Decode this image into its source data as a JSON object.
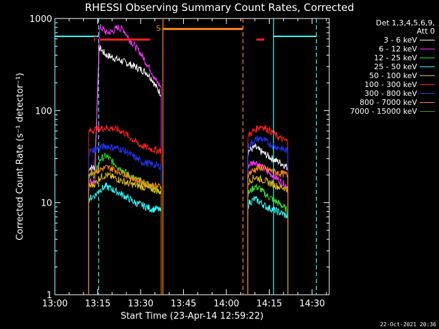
{
  "chart_data": {
    "type": "line",
    "title": "RHESSI Observing Summary Count Rates, Corrected",
    "xlabel": "Start Time (23-Apr-14 12:59:22)",
    "ylabel": "Corrected Count Rate (s⁻¹ detector⁻¹)",
    "y_scale": "log",
    "ylim": [
      1,
      1000
    ],
    "xlim_minutes_after_1300": [
      0,
      96
    ],
    "x_ticks": [
      "13:00",
      "13:15",
      "13:30",
      "13:45",
      "14:00",
      "14:15",
      "14:30"
    ],
    "y_ticks": [
      "1",
      "10",
      "100",
      "1000"
    ],
    "legend_header": [
      "Det 1,3,4,5,6,9,",
      "Att 0"
    ],
    "series": [
      {
        "name": "3 - 6 keV",
        "color": "#ffffff",
        "segments": [
          {
            "x": [
              11.8,
              12,
              14,
              15.5,
              16,
              17,
              18,
              20,
              22,
              24,
              26,
              28,
              30,
              32,
              34,
              35,
              36,
              37.2
            ],
            "y": [
              22,
              24,
              24,
              480,
              470,
              430,
              400,
              380,
              360,
              340,
              320,
              300,
              280,
              260,
              220,
              190,
              170,
              150
            ]
          },
          {
            "x": [
              67.5,
              68,
              70,
              72,
              74,
              76,
              78,
              80,
              81.5
            ],
            "y": [
              35,
              37,
              40,
              36,
              33,
              30,
              28,
              26,
              24
            ]
          }
        ]
      },
      {
        "name": "6 - 12 keV",
        "color": "#ff33ff",
        "segments": [
          {
            "x": [
              11.8,
              12,
              14,
              15.5,
              16,
              17,
              18,
              20,
              22,
              24,
              26,
              28,
              30,
              32,
              34,
              35,
              36,
              37.2
            ],
            "y": [
              15,
              17,
              17,
              720,
              800,
              760,
              700,
              720,
              800,
              760,
              600,
              500,
              420,
              330,
              260,
              220,
              200,
              180
            ]
          },
          {
            "x": [
              67.5,
              68,
              70,
              72,
              74,
              76,
              78,
              80,
              81.5
            ],
            "y": [
              24,
              26,
              28,
              25,
              22,
              20,
              18,
              16,
              15
            ]
          }
        ]
      },
      {
        "name": "12 - 25 keV",
        "color": "#33dd33",
        "segments": [
          {
            "x": [
              11.8,
              12,
              14,
              16,
              18,
              20,
              22,
              24,
              26,
              28,
              30,
              32,
              34,
              36,
              37.2
            ],
            "y": [
              18,
              20,
              20,
              30,
              32,
              28,
              25,
              22,
              20,
              18,
              17,
              16,
              15,
              14,
              13
            ]
          },
          {
            "x": [
              67.5,
              68,
              70,
              72,
              74,
              76,
              78,
              80,
              81.5
            ],
            "y": [
              12,
              13,
              15,
              14,
              12,
              11,
              10,
              9,
              8
            ]
          }
        ]
      },
      {
        "name": "25 - 50 keV",
        "color": "#33ffff",
        "segments": [
          {
            "x": [
              11.8,
              12,
              14,
              16,
              18,
              20,
              22,
              24,
              26,
              28,
              30,
              32,
              34,
              36,
              37.2
            ],
            "y": [
              10,
              11,
              12,
              14,
              15,
              14,
              13,
              12,
              11,
              10,
              9.5,
              9,
              8.5,
              8.5,
              8
            ]
          },
          {
            "x": [
              67.5,
              68,
              70,
              72,
              74,
              76,
              78,
              80,
              81.5
            ],
            "y": [
              9,
              10,
              11,
              10,
              9,
              8.5,
              8,
              7.5,
              7
            ]
          }
        ]
      },
      {
        "name": "50 - 100 keV",
        "color": "#e0c020",
        "segments": [
          {
            "x": [
              11.8,
              12,
              14,
              16,
              18,
              20,
              22,
              24,
              26,
              28,
              30,
              32,
              34,
              36,
              37.2
            ],
            "y": [
              14,
              15,
              16,
              19,
              20,
              19,
              18,
              17,
              16,
              15.5,
              15,
              14.5,
              14,
              13.5,
              13
            ]
          },
          {
            "x": [
              67.5,
              68,
              70,
              72,
              74,
              76,
              78,
              80,
              81.5
            ],
            "y": [
              16,
              17,
              19,
              18,
              17,
              16,
              15,
              14.5,
              14
            ]
          }
        ]
      },
      {
        "name": "100 - 300 keV",
        "color": "#ff2020",
        "segments": [
          {
            "x": [
              11.8,
              12,
              14,
              16,
              18,
              20,
              22,
              24,
              26,
              28,
              30,
              32,
              34,
              36,
              37.2
            ],
            "y": [
              55,
              60,
              62,
              64,
              65,
              64,
              62,
              58,
              52,
              46,
              42,
              40,
              38,
              37,
              37
            ]
          },
          {
            "x": [
              67.5,
              68,
              70,
              72,
              74,
              76,
              78,
              80,
              81.5
            ],
            "y": [
              50,
              55,
              62,
              68,
              64,
              58,
              52,
              48,
              46
            ]
          }
        ]
      },
      {
        "name": "300 - 800 keV",
        "color": "#2233ee",
        "segments": [
          {
            "x": [
              11.8,
              12,
              14,
              16,
              18,
              20,
              22,
              24,
              26,
              28,
              30,
              32,
              34,
              36,
              37.2
            ],
            "y": [
              34,
              36,
              38,
              40,
              41,
              40,
              39,
              37,
              34,
              31,
              28,
              27,
              26,
              25,
              25
            ]
          },
          {
            "x": [
              67.5,
              68,
              70,
              72,
              74,
              76,
              78,
              80,
              81.5
            ],
            "y": [
              38,
              42,
              48,
              50,
              46,
              42,
              40,
              38,
              36
            ]
          }
        ]
      },
      {
        "name": "800 - 7000 keV",
        "color": "#ff8c1a",
        "segments": [
          {
            "x": [
              11.8,
              12,
              14,
              16,
              18,
              20,
              22,
              24,
              26,
              28,
              30,
              32,
              34,
              36,
              37.2
            ],
            "y": [
              20,
              21,
              22,
              23,
              24,
              23.5,
              22,
              21,
              19,
              18,
              17,
              16,
              15.5,
              15,
              15
            ]
          },
          {
            "x": [
              67.5,
              68,
              70,
              72,
              74,
              76,
              78,
              80,
              81.5
            ],
            "y": [
              20,
              21,
              23,
              24,
              23,
              22,
              21,
              20.5,
              20
            ]
          }
        ]
      },
      {
        "name": "7000 - 15000 keV",
        "color": "#6b8e23",
        "segments": []
      }
    ],
    "annotations": [
      {
        "label": "F",
        "color": "#ff2020",
        "bar": [
          15.8,
          33.3
        ],
        "y": 590
      },
      {
        "label": "S",
        "color": "#ff8c1a",
        "bar": [
          37.8,
          65.8
        ],
        "y": 770
      },
      {
        "label": "",
        "color": "#ff2020",
        "bar": [
          70.5,
          73.3
        ],
        "y": 590
      }
    ],
    "cyan_level_segments": [
      [
        0,
        15.3
      ],
      [
        76.5,
        91.5
      ]
    ],
    "cyan_level_y": 640,
    "vlines": [
      {
        "x": 0.0,
        "color": "#33ffff",
        "style": "solid"
      },
      {
        "x": 15.3,
        "color": "#33ffff",
        "style": "dashed"
      },
      {
        "x": 37.8,
        "color": "#ff8c1a",
        "style": "solid"
      },
      {
        "x": 65.8,
        "color": "#ff8c1a",
        "style": "dashed"
      },
      {
        "x": 76.5,
        "color": "#33ffff",
        "style": "solid"
      },
      {
        "x": 91.5,
        "color": "#33ffff",
        "style": "dashed"
      }
    ],
    "date_stamp": "22-Oct-2021 20:36"
  }
}
